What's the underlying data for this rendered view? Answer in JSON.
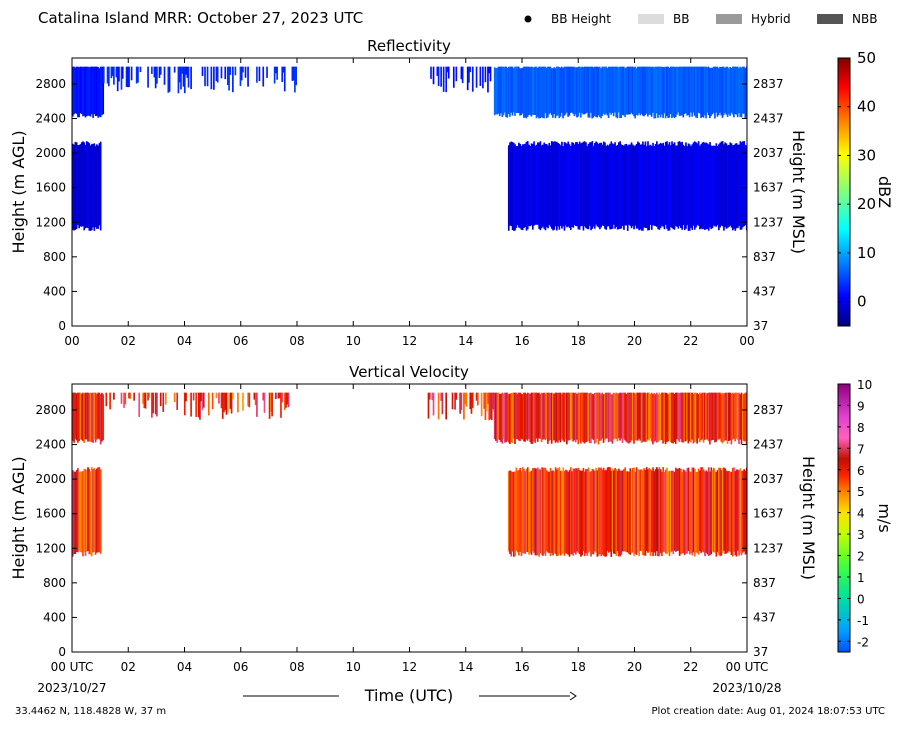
{
  "header": {
    "title": "Catalina Island MRR:  October 27, 2023 UTC",
    "legend": [
      {
        "label": "BB Height",
        "kind": "dot",
        "color": "#000000"
      },
      {
        "label": "BB",
        "kind": "box",
        "color": "#dcdcdc"
      },
      {
        "label": "Hybrid",
        "kind": "box",
        "color": "#9a9a9a"
      },
      {
        "label": "NBB",
        "kind": "box",
        "color": "#555555"
      }
    ]
  },
  "xaxis": {
    "label": "Time (UTC)",
    "ticks": [
      "00",
      "02",
      "04",
      "06",
      "08",
      "10",
      "12",
      "14",
      "16",
      "18",
      "20",
      "22",
      "00"
    ],
    "ticks_bottom": [
      "00 UTC",
      "02",
      "04",
      "06",
      "08",
      "10",
      "12",
      "14",
      "16",
      "18",
      "20",
      "22",
      "00 UTC"
    ],
    "start_date": "2023/10/27",
    "end_date": "2023/10/28"
  },
  "footer": {
    "location": "33.4462 N, 118.4828 W, 37 m",
    "created": "Plot creation date: Aug 01, 2024 18:07:53 UTC"
  },
  "chart_data": [
    {
      "type": "heatmap",
      "title": "Reflectivity",
      "xlabel": "",
      "ylabel": "Height (m AGL)",
      "y2label": "Height (m MSL)",
      "xlim": [
        0,
        24
      ],
      "ylim": [
        0,
        3100
      ],
      "yticks": [
        "0",
        "400",
        "800",
        "1200",
        "1600",
        "2000",
        "2400",
        "2800"
      ],
      "y2ticks": [
        "37",
        "437",
        "837",
        "1237",
        "1637",
        "2037",
        "2437",
        "2837"
      ],
      "colorbar": {
        "label": "dBZ",
        "range": [
          -5,
          50
        ],
        "ticks": [
          "0",
          "10",
          "20",
          "30",
          "40",
          "50"
        ],
        "colormap": "jet"
      },
      "regions": [
        {
          "t0": 0.0,
          "t1": 1.1,
          "h0": 2400,
          "h1": 3000,
          "value": 2,
          "sparse": false
        },
        {
          "t0": 1.1,
          "t1": 8.0,
          "h0": 2700,
          "h1": 3000,
          "value": 3,
          "sparse": true
        },
        {
          "t0": 0.0,
          "t1": 1.0,
          "h0": 1100,
          "h1": 2100,
          "value": -1,
          "sparse": false
        },
        {
          "t0": 12.6,
          "t1": 15.0,
          "h0": 2700,
          "h1": 3000,
          "value": 2,
          "sparse": true
        },
        {
          "t0": 15.0,
          "t1": 24.0,
          "h0": 2400,
          "h1": 3000,
          "value": 6,
          "sparse": false
        },
        {
          "t0": 15.5,
          "t1": 24.0,
          "h0": 1100,
          "h1": 2100,
          "value": 0,
          "sparse": false
        }
      ]
    },
    {
      "type": "heatmap",
      "title": "Vertical Velocity",
      "xlabel": "Time (UTC)",
      "ylabel": "Height (m AGL)",
      "y2label": "Height (m MSL)",
      "xlim": [
        0,
        24
      ],
      "ylim": [
        0,
        3100
      ],
      "yticks": [
        "0",
        "400",
        "800",
        "1200",
        "1600",
        "2000",
        "2400",
        "2800"
      ],
      "y2ticks": [
        "37",
        "437",
        "837",
        "1237",
        "1637",
        "2037",
        "2437",
        "2837"
      ],
      "colorbar": {
        "label": "m/s",
        "range": [
          -2.5,
          10
        ],
        "ticks": [
          "-2",
          "-1",
          "0",
          "1",
          "2",
          "3",
          "4",
          "5",
          "6",
          "7",
          "8",
          "9",
          "10"
        ],
        "colormap": "velocity"
      },
      "regions": [
        {
          "t0": 0.0,
          "t1": 1.1,
          "h0": 2400,
          "h1": 3000,
          "value": 6,
          "sparse": false
        },
        {
          "t0": 1.1,
          "t1": 8.0,
          "h0": 2700,
          "h1": 3000,
          "value": 6,
          "sparse": true
        },
        {
          "t0": 0.0,
          "t1": 1.0,
          "h0": 1100,
          "h1": 2100,
          "value": 6,
          "sparse": false
        },
        {
          "t0": 12.6,
          "t1": 15.0,
          "h0": 2700,
          "h1": 3000,
          "value": 6,
          "sparse": true
        },
        {
          "t0": 15.0,
          "t1": 24.0,
          "h0": 2400,
          "h1": 3000,
          "value": 6,
          "sparse": false
        },
        {
          "t0": 15.5,
          "t1": 24.0,
          "h0": 1100,
          "h1": 2100,
          "value": 6,
          "sparse": false
        }
      ]
    }
  ]
}
